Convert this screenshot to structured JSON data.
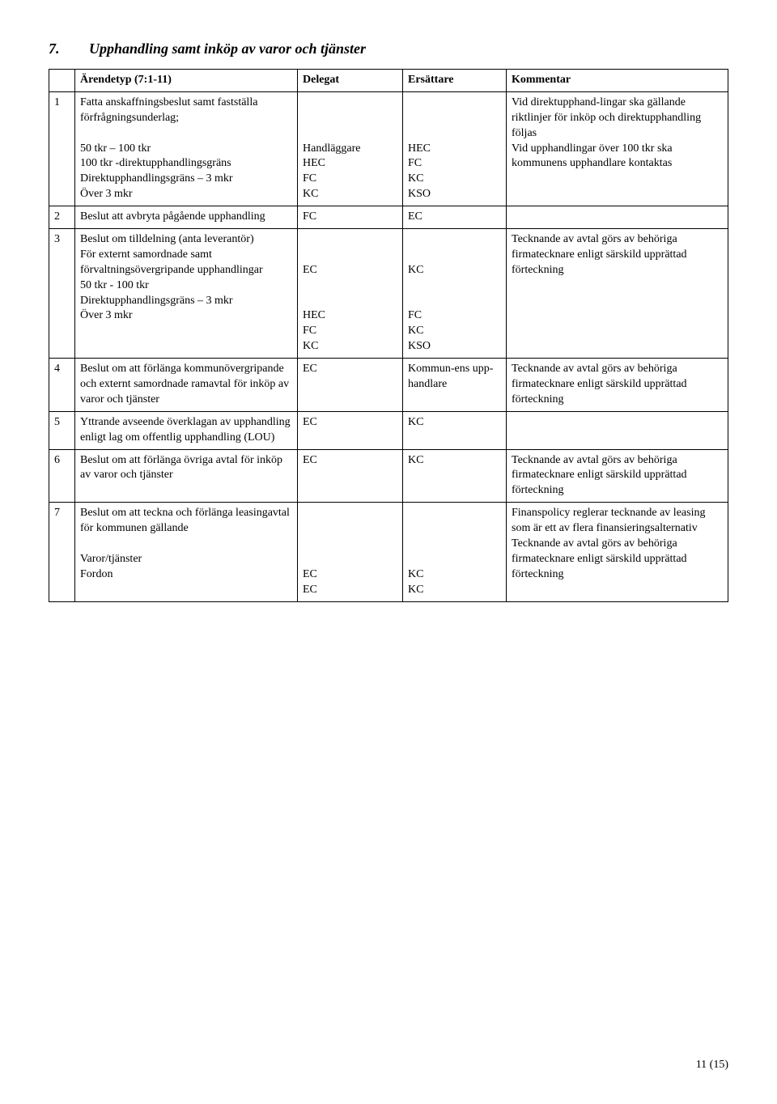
{
  "heading": {
    "number": "7.",
    "title": "Upphandling samt inköp av varor och tjänster"
  },
  "columns": {
    "arendetyp": "Ärendetyp (7:1-11)",
    "delegat": "Delegat",
    "ersattare": "Ersättare",
    "kommentar": "Kommentar"
  },
  "rows": [
    {
      "num": "1",
      "arende": "Fatta anskaffningsbeslut samt fastställa förfrågningsunderlag;\n\n50 tkr – 100 tkr\n100 tkr -direktupphandlingsgräns\nDirektupphandlingsgräns – 3 mkr\nÖver 3 mkr",
      "delegat": "Handläggare\nHEC\nFC\nKC",
      "ersattare": "HEC\nFC\nKC\nKSO",
      "kommentar": "Vid direktupphand-lingar ska gällande riktlinjer för inköp och direktupphandling följas\nVid upphandlingar över 100 tkr ska kommunens upphandlare kontaktas"
    },
    {
      "num": "2",
      "arende": "Beslut att avbryta pågående upphandling",
      "delegat": "FC",
      "ersattare": "EC",
      "kommentar": ""
    },
    {
      "num": "3",
      "arende": "Beslut om tilldelning (anta leverantör)\nFör externt samordnade samt förvaltningsövergripande upphandlingar\n50 tkr - 100 tkr\nDirektupphandlingsgräns – 3 mkr\nÖver 3 mkr",
      "delegat": "EC\n\n\nHEC\nFC\nKC",
      "ersattare": "KC\n\n\nFC\nKC\nKSO",
      "kommentar": "Tecknande av avtal görs av behöriga firmatecknare enligt särskild upprättad förteckning"
    },
    {
      "num": "4",
      "arende": "Beslut om att förlänga kommunövergripande och externt samordnade ramavtal för inköp av varor och tjänster",
      "delegat": "EC",
      "ersattare": "Kommun-ens upp-handlare",
      "kommentar": "Tecknande av avtal görs av behöriga firmatecknare enligt särskild upprättad förteckning"
    },
    {
      "num": "5",
      "arende": "Yttrande avseende överklagan av upphandling enligt lag om offentlig upphandling (LOU)",
      "delegat": " EC",
      "ersattare": " KC",
      "kommentar": ""
    },
    {
      "num": "6",
      "arende": "Beslut om att förlänga övriga avtal för inköp av varor och tjänster",
      "delegat": "EC",
      "ersattare": "KC",
      "kommentar": "Tecknande av avtal görs av behöriga firmatecknare enligt särskild upprättad förteckning"
    },
    {
      "num": "7",
      "arende": "Beslut om att teckna och förlänga leasingavtal för kommunen gällande\n\nVaror/tjänster\nFordon",
      "delegat": "EC\nEC",
      "ersattare": "KC\nKC",
      "kommentar": "Finanspolicy reglerar tecknande av leasing som är ett av flera finansieringsalternativ\nTecknande av avtal görs av behöriga firmatecknare enligt särskild upprättad förteckning"
    }
  ],
  "pageNumber": "11  (15)"
}
